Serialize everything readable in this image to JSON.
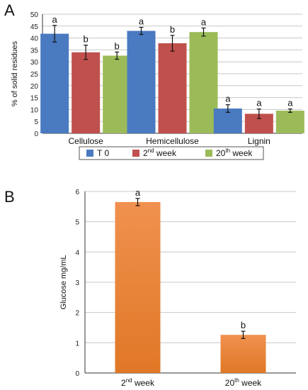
{
  "panels": {
    "a_letter": "A",
    "b_letter": "B"
  },
  "colors": {
    "t0": "#4a7ac0",
    "week2": "#c0504d",
    "week20": "#9bbb59",
    "glucose_top": "#f0914f",
    "glucose_bottom": "#e07826",
    "grid": "#c8c8c8",
    "axis": "#333333"
  },
  "chart_data": [
    {
      "type": "bar",
      "panel": "A",
      "ylabel": "% of solid residues",
      "ylim": [
        0,
        50
      ],
      "yticks": [
        0,
        5,
        10,
        15,
        20,
        25,
        30,
        35,
        40,
        45,
        50
      ],
      "categories": [
        "Cellulose",
        "Hemicellulose",
        "Lignin"
      ],
      "grid": true,
      "legend_position": "bottom",
      "series": [
        {
          "name": "T 0",
          "legend_base": "T 0",
          "legend_sup": "",
          "legend_tail": "",
          "color": "#4a7ac0",
          "values": [
            41.8,
            43.0,
            10.4
          ],
          "errors": [
            3.5,
            1.5,
            1.6
          ],
          "letters": [
            "a",
            "a",
            "a"
          ]
        },
        {
          "name": "2nd week",
          "legend_base": "2",
          "legend_sup": "nd",
          "legend_tail": " week",
          "color": "#c0504d",
          "values": [
            34.0,
            37.8,
            8.2
          ],
          "errors": [
            3.0,
            3.3,
            2.0
          ],
          "letters": [
            "b",
            "b",
            "a"
          ]
        },
        {
          "name": "20th week",
          "legend_base": "20",
          "legend_sup": "th",
          "legend_tail": " week",
          "color": "#9bbb59",
          "values": [
            32.6,
            42.5,
            9.5
          ],
          "errors": [
            1.5,
            1.7,
            0.7
          ],
          "letters": [
            "b",
            "a",
            "a"
          ]
        }
      ]
    },
    {
      "type": "bar",
      "panel": "B",
      "ylabel": "Glucose mg/mL",
      "ylim": [
        0,
        6
      ],
      "yticks": [
        0,
        1,
        2,
        3,
        4,
        5,
        6
      ],
      "grid": true,
      "categories": [
        {
          "base": "2",
          "sup": "nd",
          "tail": " week"
        },
        {
          "base": "20",
          "sup": "th",
          "tail": " week"
        }
      ],
      "values": [
        5.65,
        1.26
      ],
      "errors": [
        0.12,
        0.12
      ],
      "letters": [
        "a",
        "b"
      ]
    }
  ]
}
